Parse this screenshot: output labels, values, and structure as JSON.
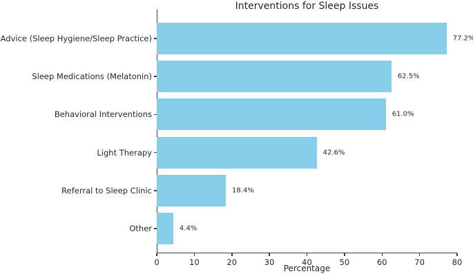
{
  "chart_data": {
    "type": "bar",
    "orientation": "horizontal",
    "title": "Interventions for Sleep Issues",
    "xlabel": "Percentage",
    "ylabel": "",
    "categories": [
      "Advice (Sleep Hygiene/Sleep Practice)",
      "Sleep Medications (Melatonin)",
      "Behavioral Interventions",
      "Light Therapy",
      "Referral to Sleep Clinic",
      "Other"
    ],
    "values": [
      77.2,
      62.5,
      61.0,
      42.6,
      18.4,
      4.4
    ],
    "value_labels": [
      "77.2%",
      "62.5%",
      "61.0%",
      "42.6%",
      "18.4%",
      "4.4%"
    ],
    "xlim": [
      0,
      80
    ],
    "x_ticks": [
      0,
      10,
      20,
      30,
      40,
      50,
      60,
      70,
      80
    ],
    "grid": false,
    "legend": "none",
    "bar_color": "#87CEEB",
    "axis_color": "#3a3a3a",
    "text_color": "#262626"
  }
}
